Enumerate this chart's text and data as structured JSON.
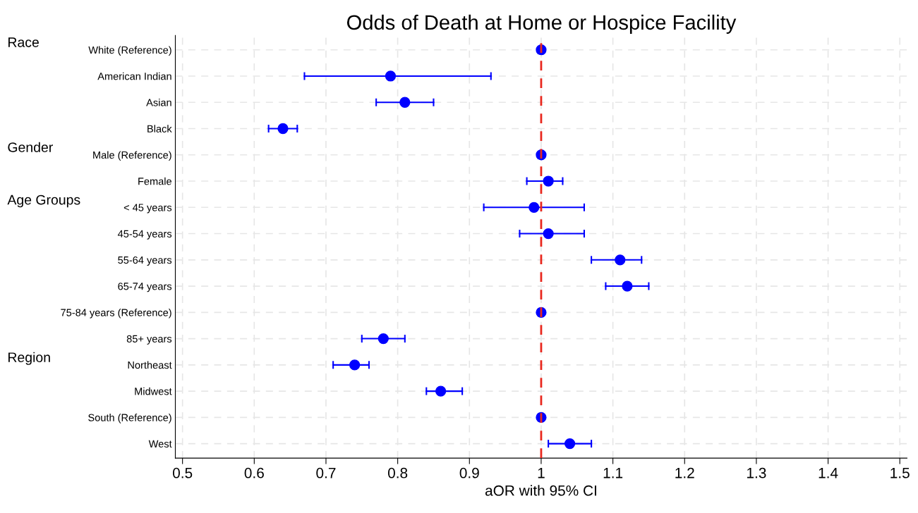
{
  "chart_data": {
    "type": "scatter",
    "orientation": "horizontal",
    "title": "Odds of Death at Home or Hospice Facility",
    "xlabel": "aOR with 95% CI",
    "categories": [
      "White (Reference)",
      "American Indian",
      "Asian",
      "Black",
      "Male (Reference)",
      "Female",
      "< 45 years",
      "45-54 years",
      "55-64 years",
      "65-74 years",
      "75-84 years (Reference)",
      "85+ years",
      "Northeast",
      "Midwest",
      "South (Reference)",
      "West"
    ],
    "values": [
      1.0,
      0.79,
      0.81,
      0.64,
      1.0,
      1.01,
      0.99,
      1.01,
      1.11,
      1.12,
      1.0,
      0.78,
      0.74,
      0.86,
      1.0,
      1.04
    ],
    "errors": [
      null,
      [
        0.67,
        0.93
      ],
      [
        0.77,
        0.85
      ],
      [
        0.62,
        0.66
      ],
      null,
      [
        0.98,
        1.03
      ],
      [
        0.92,
        1.06
      ],
      [
        0.97,
        1.06
      ],
      [
        1.07,
        1.14
      ],
      [
        1.09,
        1.15
      ],
      null,
      [
        0.75,
        0.81
      ],
      [
        0.71,
        0.76
      ],
      [
        0.84,
        0.89
      ],
      null,
      [
        1.01,
        1.07
      ]
    ],
    "color": "#0000ff",
    "marker": "circle",
    "xlim": [
      0.49,
      1.51
    ],
    "xticks": [
      0.5,
      0.6,
      0.7,
      0.8,
      0.9,
      1,
      1.1,
      1.2,
      1.3,
      1.4,
      1.5
    ],
    "ref_lines": [
      {
        "axis": "x",
        "value": 1,
        "color": "#e8281e",
        "line_style": "dashed"
      }
    ],
    "annotations": [
      "Race",
      "Gender",
      "Age Groups",
      "Region"
    ],
    "grid": true,
    "legend": false
  }
}
